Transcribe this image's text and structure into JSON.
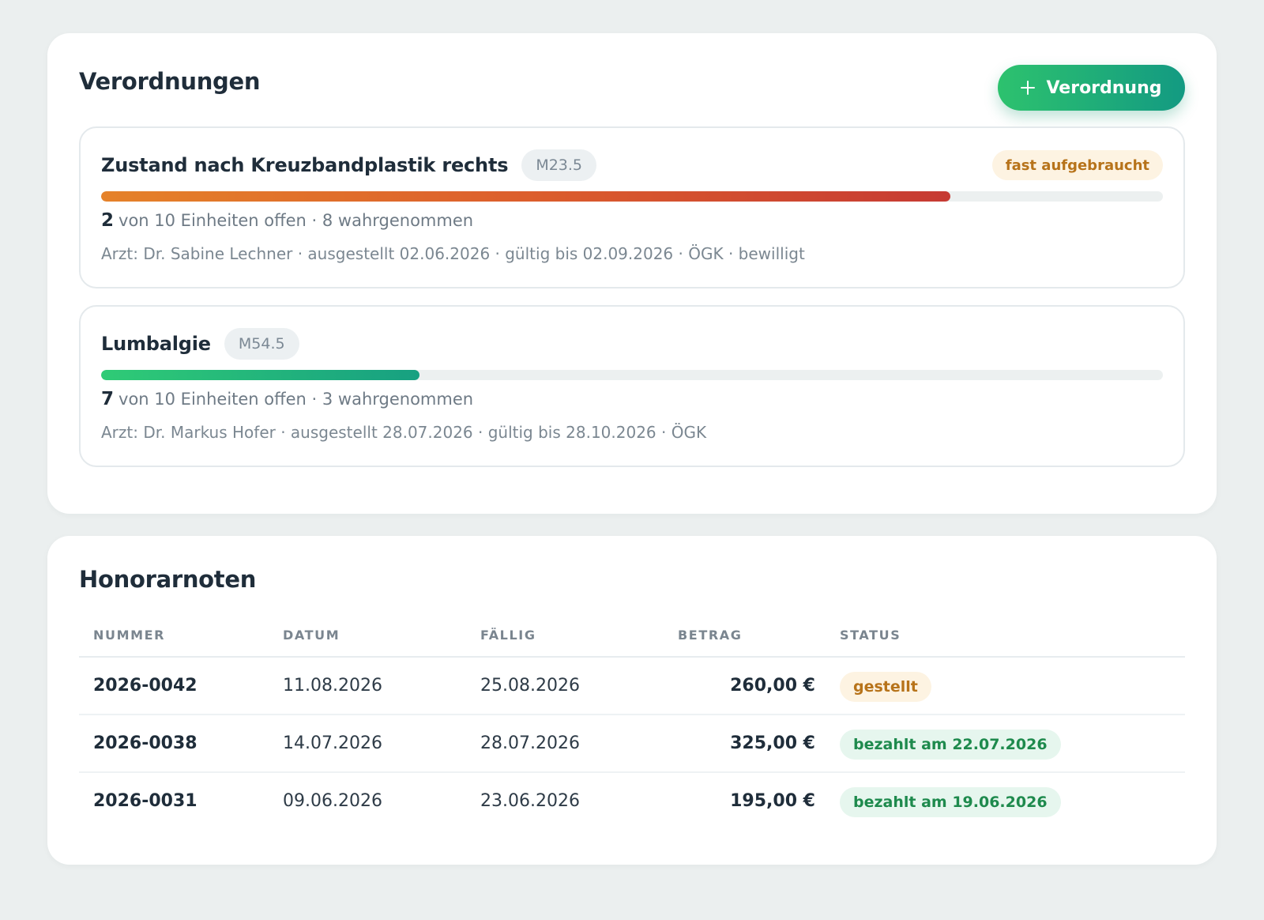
{
  "verordnungen": {
    "title": "Verordnungen",
    "add_button_label": "Verordnung",
    "add_button_icon": "plus-icon",
    "items": [
      {
        "title": "Zustand nach Kreuzbandplastik rechts",
        "code": "M23.5",
        "badge": "fast aufgebraucht",
        "units_open": "2",
        "units_text": "von 10 Einheiten offen · 8 wahrgenommen",
        "used_fraction": 0.8,
        "meta": "Arzt: Dr. Sabine Lechner · ausgestellt 02.06.2026 · gültig bis 02.09.2026 · ÖGK · bewilligt"
      },
      {
        "title": "Lumbalgie",
        "code": "M54.5",
        "badge": "",
        "units_open": "7",
        "units_text": "von 10 Einheiten offen · 3 wahrgenommen",
        "used_fraction": 0.3,
        "meta": "Arzt: Dr. Markus Hofer · ausgestellt 28.07.2026 · gültig bis 28.10.2026 · ÖGK"
      }
    ]
  },
  "honorarnoten": {
    "title": "Honorarnoten",
    "columns": {
      "nummer": "NUMMER",
      "datum": "DATUM",
      "faellig": "FÄLLIG",
      "betrag": "BETRAG",
      "status": "STATUS"
    },
    "rows": [
      {
        "nummer": "2026-0042",
        "datum": "11.08.2026",
        "faellig": "25.08.2026",
        "betrag": "260,00 €",
        "status": "gestellt",
        "status_type": "open"
      },
      {
        "nummer": "2026-0038",
        "datum": "14.07.2026",
        "faellig": "28.07.2026",
        "betrag": "325,00 €",
        "status": "bezahlt am 22.07.2026",
        "status_type": "paid"
      },
      {
        "nummer": "2026-0031",
        "datum": "09.06.2026",
        "faellig": "23.06.2026",
        "betrag": "195,00 €",
        "status": "bezahlt am 19.06.2026",
        "status_type": "paid"
      }
    ]
  },
  "colors": {
    "background": "#ebefef",
    "accent_green": "#2dc26e",
    "accent_teal": "#139a82",
    "warning": "#b7731a",
    "warning_bg": "#fdf3e2",
    "success": "#1e8a4d",
    "success_bg": "#e6f6ee",
    "progress_red": "#c63a33"
  }
}
